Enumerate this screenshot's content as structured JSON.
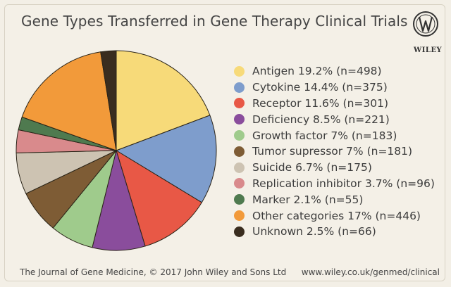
{
  "chart_data": {
    "type": "pie",
    "title": "Gene Types Transferred in Gene Therapy Clinical Trials",
    "slices": [
      {
        "label": "Antigen 19.2% (n=498)",
        "name": "Antigen",
        "percent": 19.2,
        "n": 498,
        "color": "#f7da79"
      },
      {
        "label": "Cytokine 14.4% (n=375)",
        "name": "Cytokine",
        "percent": 14.4,
        "n": 375,
        "color": "#7e9dcc"
      },
      {
        "label": "Receptor 11.6% (n=301)",
        "name": "Receptor",
        "percent": 11.6,
        "n": 301,
        "color": "#e85846"
      },
      {
        "label": "Deficiency 8.5% (n=221)",
        "name": "Deficiency",
        "percent": 8.5,
        "n": 221,
        "color": "#8a4d9c"
      },
      {
        "label": "Growth factor 7% (n=183)",
        "name": "Growth factor",
        "percent": 7,
        "n": 183,
        "color": "#9fcb8c"
      },
      {
        "label": "Tumor supressor 7% (n=181)",
        "name": "Tumor supressor",
        "percent": 7,
        "n": 181,
        "color": "#7e5c35"
      },
      {
        "label": "Suicide 6.7% (n=175)",
        "name": "Suicide",
        "percent": 6.7,
        "n": 175,
        "color": "#cdc3b2"
      },
      {
        "label": "Replication inhibitor 3.7% (n=96)",
        "name": "Replication inhibitor",
        "percent": 3.7,
        "n": 96,
        "color": "#d98a8c"
      },
      {
        "label": "Marker 2.1% (n=55)",
        "name": "Marker",
        "percent": 2.1,
        "n": 55,
        "color": "#4f7a4f"
      },
      {
        "label": "Other categories 17% (n=446)",
        "name": "Other categories",
        "percent": 17,
        "n": 446,
        "color": "#f29a3a"
      },
      {
        "label": "Unknown 2.5% (n=66)",
        "name": "Unknown",
        "percent": 2.5,
        "n": 66,
        "color": "#3a2d1f"
      }
    ],
    "legend_position": "right"
  },
  "publisher": {
    "logo_text": "WILEY"
  },
  "footer": {
    "left": "The Journal of Gene Medicine, © 2017 John Wiley and Sons Ltd",
    "right": "www.wiley.co.uk/genmed/clinical"
  }
}
